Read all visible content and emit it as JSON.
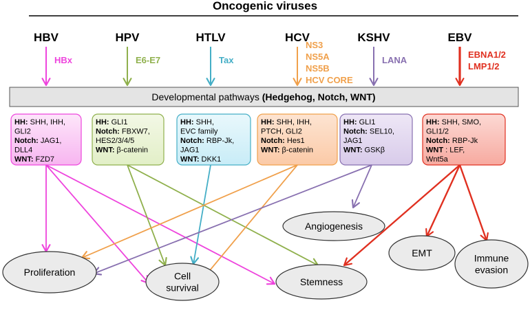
{
  "title": "Oncogenic viruses",
  "pathways_bar": {
    "prefix": "Developmental pathways ",
    "bold": "(Hedgehog, Notch, WNT)"
  },
  "colors": {
    "magenta": "#ee44dd",
    "green": "#8fb04c",
    "cyan": "#44aec6",
    "orange": "#f0a04b",
    "purple": "#8870b0",
    "red": "#e03020"
  },
  "viruses": [
    {
      "name": "HBV",
      "color": "#ee44dd",
      "proteins": [
        "HBx"
      ],
      "box": {
        "lines": [
          [
            {
              "b": "HH: "
            },
            {
              "t": "SHH, IHH,"
            }
          ],
          [
            {
              "t": "GLI2"
            }
          ],
          [
            {
              "b": "Notch: "
            },
            {
              "t": "JAG1,"
            }
          ],
          [
            {
              "t": "DLL4"
            }
          ],
          [
            {
              "b": "WNT: "
            },
            {
              "t": "FZD7"
            }
          ]
        ]
      }
    },
    {
      "name": "HPV",
      "color": "#8fb04c",
      "proteins": [
        "E6-E7"
      ],
      "box": {
        "lines": [
          [
            {
              "b": "HH: "
            },
            {
              "t": "GLI1"
            }
          ],
          [
            {
              "b": "Notch: "
            },
            {
              "t": "FBXW7,"
            }
          ],
          [
            {
              "t": "HES2/3/4/5"
            }
          ],
          [
            {
              "b": "WNT: "
            },
            {
              "t": "β-catenin"
            }
          ]
        ]
      }
    },
    {
      "name": "HTLV",
      "color": "#44aec6",
      "proteins": [
        "Tax"
      ],
      "box": {
        "lines": [
          [
            {
              "b": "HH: "
            },
            {
              "t": "SHH,"
            }
          ],
          [
            {
              "t": "EVC family"
            }
          ],
          [
            {
              "b": "Notch: "
            },
            {
              "t": "RBP-Jk,"
            }
          ],
          [
            {
              "t": "JAG1"
            }
          ],
          [
            {
              "b": "WNT: "
            },
            {
              "t": "DKK1"
            }
          ]
        ]
      }
    },
    {
      "name": "HCV",
      "color": "#f0a04b",
      "proteins": [
        "NS3",
        "NS5A",
        "NS5B",
        "HCV CORE"
      ],
      "box": {
        "lines": [
          [
            {
              "b": "HH: "
            },
            {
              "t": "SHH, IHH,"
            }
          ],
          [
            {
              "t": "PTCH, GLI2"
            }
          ],
          [
            {
              "b": "Notch: "
            },
            {
              "t": "Hes1"
            }
          ],
          [
            {
              "b": "WNT: "
            },
            {
              "t": "β-catenin"
            }
          ]
        ]
      }
    },
    {
      "name": "KSHV",
      "color": "#8870b0",
      "proteins": [
        "LANA"
      ],
      "box": {
        "lines": [
          [
            {
              "b": "HH: "
            },
            {
              "t": "GLI1"
            }
          ],
          [
            {
              "b": "Notch: "
            },
            {
              "t": "SEL10,"
            }
          ],
          [
            {
              "t": "JAG1"
            }
          ],
          [
            {
              "b": "WNT: "
            },
            {
              "t": "GSKβ"
            }
          ]
        ]
      }
    },
    {
      "name": "EBV",
      "color": "#e03020",
      "proteins": [
        "EBNA1/2",
        "LMP1/2"
      ],
      "box": {
        "lines": [
          [
            {
              "b": "HH: "
            },
            {
              "t": "SHH, SMO,"
            }
          ],
          [
            {
              "t": "GLI1/2"
            }
          ],
          [
            {
              "b": "Notch: "
            },
            {
              "t": "RBP-Jk"
            }
          ],
          [
            {
              "b": "WNT "
            },
            {
              "t": ": LEF,"
            }
          ],
          [
            {
              "t": "Wnt5a"
            }
          ]
        ]
      }
    }
  ],
  "outcomes": {
    "proliferation": [
      "Proliferation"
    ],
    "cell_survival": [
      "Cell",
      "survival"
    ],
    "stemness": [
      "Stemness"
    ],
    "angiogenesis": [
      "Angiogenesis"
    ],
    "emt": [
      "EMT"
    ],
    "immune_evasion": [
      "Immune",
      "evasion"
    ]
  },
  "links": [
    {
      "from": "HBV",
      "to": "proliferation"
    },
    {
      "from": "HBV",
      "to": "cell_survival"
    },
    {
      "from": "HBV",
      "to": "stemness"
    },
    {
      "from": "HPV",
      "to": "cell_survival"
    },
    {
      "from": "HPV",
      "to": "stemness"
    },
    {
      "from": "HTLV",
      "to": "cell_survival"
    },
    {
      "from": "HCV",
      "to": "proliferation"
    },
    {
      "from": "HCV",
      "to": "cell_survival"
    },
    {
      "from": "KSHV",
      "to": "proliferation"
    },
    {
      "from": "KSHV",
      "to": "angiogenesis"
    },
    {
      "from": "EBV",
      "to": "stemness"
    },
    {
      "from": "EBV",
      "to": "emt"
    },
    {
      "from": "EBV",
      "to": "immune_evasion"
    }
  ]
}
